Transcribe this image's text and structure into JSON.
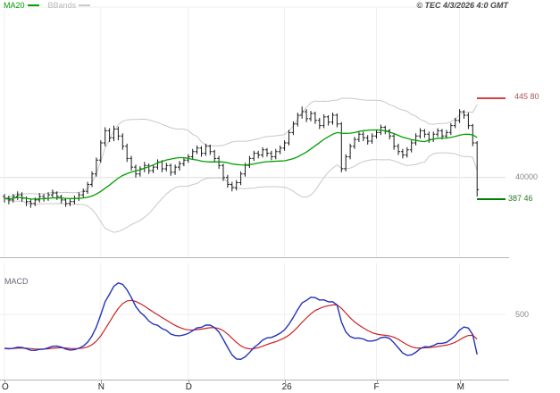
{
  "legend": {
    "ma20": "MA20",
    "bbands": "BBands"
  },
  "copyright": "© TEC 4/3/2026 4:0 GMT",
  "macd_label": "MACD",
  "y_axis": {
    "resistance_label": "445 80",
    "gridline_label": "40000",
    "support_label": "387 46",
    "macd_gridline_label": "500"
  },
  "colors": {
    "ma20": "#00a000",
    "bollinger_bands": "#c8c8c8",
    "candles": "#1a1a1a",
    "resistance_line": "#cc0000",
    "support_line": "#008000",
    "macd_line": "#2233bb",
    "macd_signal": "#cc2222",
    "gridline": "#dddddd"
  },
  "chart_data": {
    "type": "candlestick",
    "title": "",
    "x_labels": [
      "O",
      "N",
      "D",
      "26",
      "F",
      "M"
    ],
    "month_day_index": [
      0,
      22,
      42,
      64,
      85,
      104
    ],
    "price_axis": {
      "resistance": 445.8,
      "gridline": 400.0,
      "support": 387.46,
      "approx_range": [
        380,
        450
      ]
    },
    "indicators": {
      "ma": "SMA20",
      "bands": "Bollinger 20 ±2σ",
      "macd_params": [
        12,
        26,
        9
      ],
      "macd_gridline_value": 5.0
    },
    "ohlc": [
      [
        389,
        390.5,
        385.5,
        388
      ],
      [
        388,
        389.5,
        384.5,
        387
      ],
      [
        387,
        390.5,
        385.5,
        389
      ],
      [
        389,
        392,
        387,
        390
      ],
      [
        390,
        391.5,
        386,
        388
      ],
      [
        388,
        389,
        383.5,
        386
      ],
      [
        386,
        387.5,
        382.5,
        385
      ],
      [
        385,
        388.5,
        383.5,
        387
      ],
      [
        387,
        391,
        385.5,
        389
      ],
      [
        389,
        390.5,
        386,
        388
      ],
      [
        388,
        391.5,
        386.5,
        390
      ],
      [
        390,
        393,
        388,
        391
      ],
      [
        391,
        392,
        387,
        389
      ],
      [
        389,
        390,
        385,
        387
      ],
      [
        387,
        388,
        383,
        385
      ],
      [
        385,
        387.5,
        383.5,
        386
      ],
      [
        386,
        389.5,
        384.5,
        388
      ],
      [
        388,
        391.5,
        386.5,
        390
      ],
      [
        390,
        393.5,
        388.5,
        392
      ],
      [
        392,
        397.5,
        390.5,
        396
      ],
      [
        396,
        403.5,
        394.5,
        402
      ],
      [
        402,
        411.5,
        400.5,
        410
      ],
      [
        410,
        421.5,
        408.5,
        420
      ],
      [
        420,
        429,
        418,
        427
      ],
      [
        427,
        428.5,
        420.5,
        423
      ],
      [
        423,
        430,
        421,
        428
      ],
      [
        428,
        429.5,
        421.5,
        424
      ],
      [
        424,
        425.5,
        416,
        418
      ],
      [
        418,
        419.5,
        409,
        411
      ],
      [
        411,
        412.5,
        404,
        406
      ],
      [
        406,
        407.5,
        400,
        402
      ],
      [
        402,
        406.5,
        400.5,
        405
      ],
      [
        405,
        409,
        403,
        407
      ],
      [
        407,
        408,
        402,
        404
      ],
      [
        404,
        407.5,
        402.5,
        406
      ],
      [
        406,
        410.5,
        404.5,
        409
      ],
      [
        409,
        410,
        403,
        405
      ],
      [
        405,
        408.5,
        403.5,
        407
      ],
      [
        407,
        408,
        401,
        403
      ],
      [
        403,
        407.5,
        401.5,
        406
      ],
      [
        406,
        409.5,
        404,
        408
      ],
      [
        408,
        411.5,
        406.5,
        410
      ],
      [
        410,
        413.5,
        408.5,
        412
      ],
      [
        412,
        416.5,
        410.5,
        415
      ],
      [
        415,
        418.5,
        413.5,
        417
      ],
      [
        417,
        418,
        412,
        414
      ],
      [
        414,
        419.5,
        412.5,
        418
      ],
      [
        418,
        419,
        413,
        415
      ],
      [
        415,
        416,
        409,
        411
      ],
      [
        411,
        412.5,
        405,
        407
      ],
      [
        407,
        408,
        398,
        400
      ],
      [
        400,
        401.5,
        394,
        396
      ],
      [
        396,
        397.5,
        392,
        394
      ],
      [
        394,
        398.5,
        392.5,
        397
      ],
      [
        397,
        403.5,
        395.5,
        402
      ],
      [
        402,
        408.5,
        400.5,
        407
      ],
      [
        407,
        412.5,
        405.5,
        411
      ],
      [
        411,
        415.5,
        409.5,
        414
      ],
      [
        414,
        415.5,
        411,
        413
      ],
      [
        413,
        417.5,
        411.5,
        416
      ],
      [
        416,
        417,
        412,
        414
      ],
      [
        414,
        415.5,
        410,
        412
      ],
      [
        412,
        416.5,
        410.5,
        415
      ],
      [
        415,
        418.5,
        413.5,
        417
      ],
      [
        417,
        421.5,
        415.5,
        420
      ],
      [
        420,
        427.5,
        418.5,
        426
      ],
      [
        426,
        432.5,
        424.5,
        431
      ],
      [
        431,
        437.5,
        429.5,
        436
      ],
      [
        436,
        441,
        434,
        438
      ],
      [
        438,
        439.5,
        432,
        434
      ],
      [
        434,
        438.5,
        432.5,
        437
      ],
      [
        437,
        438,
        431,
        433
      ],
      [
        433,
        434.5,
        428,
        430
      ],
      [
        430,
        436.5,
        428.5,
        435
      ],
      [
        435,
        436,
        430,
        432
      ],
      [
        432,
        437.5,
        430.5,
        436
      ],
      [
        436,
        437,
        429,
        431
      ],
      [
        431,
        432,
        403,
        405
      ],
      [
        405,
        413.5,
        403.5,
        412
      ],
      [
        412,
        419.5,
        410.5,
        418
      ],
      [
        418,
        423.5,
        416.5,
        422
      ],
      [
        422,
        426.5,
        420.5,
        425
      ],
      [
        425,
        426.5,
        421,
        423
      ],
      [
        423,
        424.5,
        419,
        421
      ],
      [
        421,
        425.5,
        419.5,
        424
      ],
      [
        424,
        427.5,
        422.5,
        426
      ],
      [
        426,
        430.5,
        424.5,
        429
      ],
      [
        429,
        430,
        425,
        427
      ],
      [
        427,
        428,
        422,
        424
      ],
      [
        424,
        425,
        416,
        418
      ],
      [
        418,
        419.5,
        413,
        415
      ],
      [
        415,
        416.5,
        411,
        413
      ],
      [
        413,
        417.5,
        411.5,
        416
      ],
      [
        416,
        421.5,
        414.5,
        420
      ],
      [
        420,
        425.5,
        418.5,
        424
      ],
      [
        424,
        428.5,
        422.5,
        427
      ],
      [
        427,
        428,
        423,
        425
      ],
      [
        425,
        426.5,
        420,
        422
      ],
      [
        422,
        426.5,
        420.5,
        425
      ],
      [
        425,
        428.5,
        423.5,
        427
      ],
      [
        427,
        428,
        422,
        424
      ],
      [
        424,
        427.5,
        422.5,
        426
      ],
      [
        426,
        431.5,
        424.5,
        430
      ],
      [
        430,
        434.5,
        428.5,
        433
      ],
      [
        433,
        439.5,
        431.5,
        438
      ],
      [
        438,
        439,
        434,
        436
      ],
      [
        436,
        437.5,
        428,
        430
      ],
      [
        430,
        431,
        418,
        420
      ],
      [
        420,
        421,
        389,
        393
      ]
    ]
  }
}
